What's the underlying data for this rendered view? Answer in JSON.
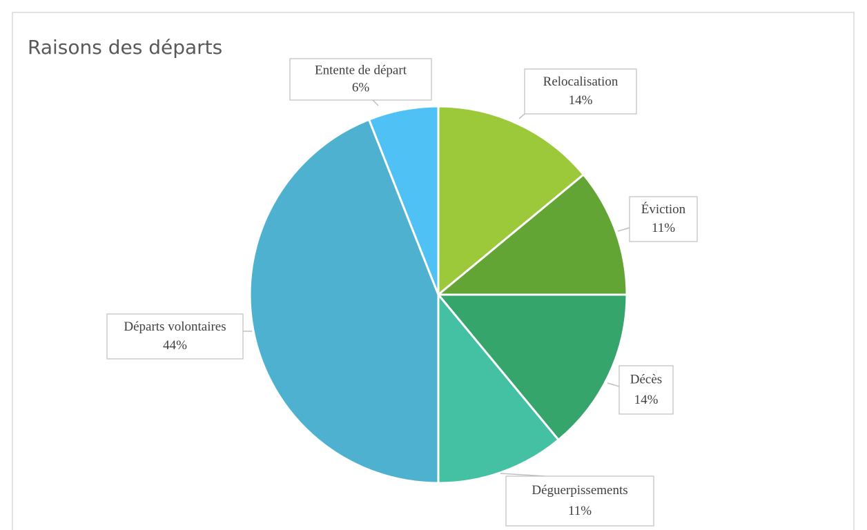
{
  "chart_data": {
    "type": "pie",
    "title": "Raisons des départs",
    "categories": [
      "Relocalisation",
      "Éviction",
      "Décès",
      "Déguerpissements",
      "Départs volontaires",
      "Entente de départ"
    ],
    "values": [
      14,
      11,
      14,
      11,
      44,
      6
    ],
    "value_labels": [
      "14%",
      "11%",
      "14%",
      "11%",
      "44%",
      "6%"
    ],
    "colors": [
      "#9bc93a",
      "#63a534",
      "#36a56b",
      "#44c1a3",
      "#4fb1d0",
      "#4fc1f5"
    ]
  }
}
